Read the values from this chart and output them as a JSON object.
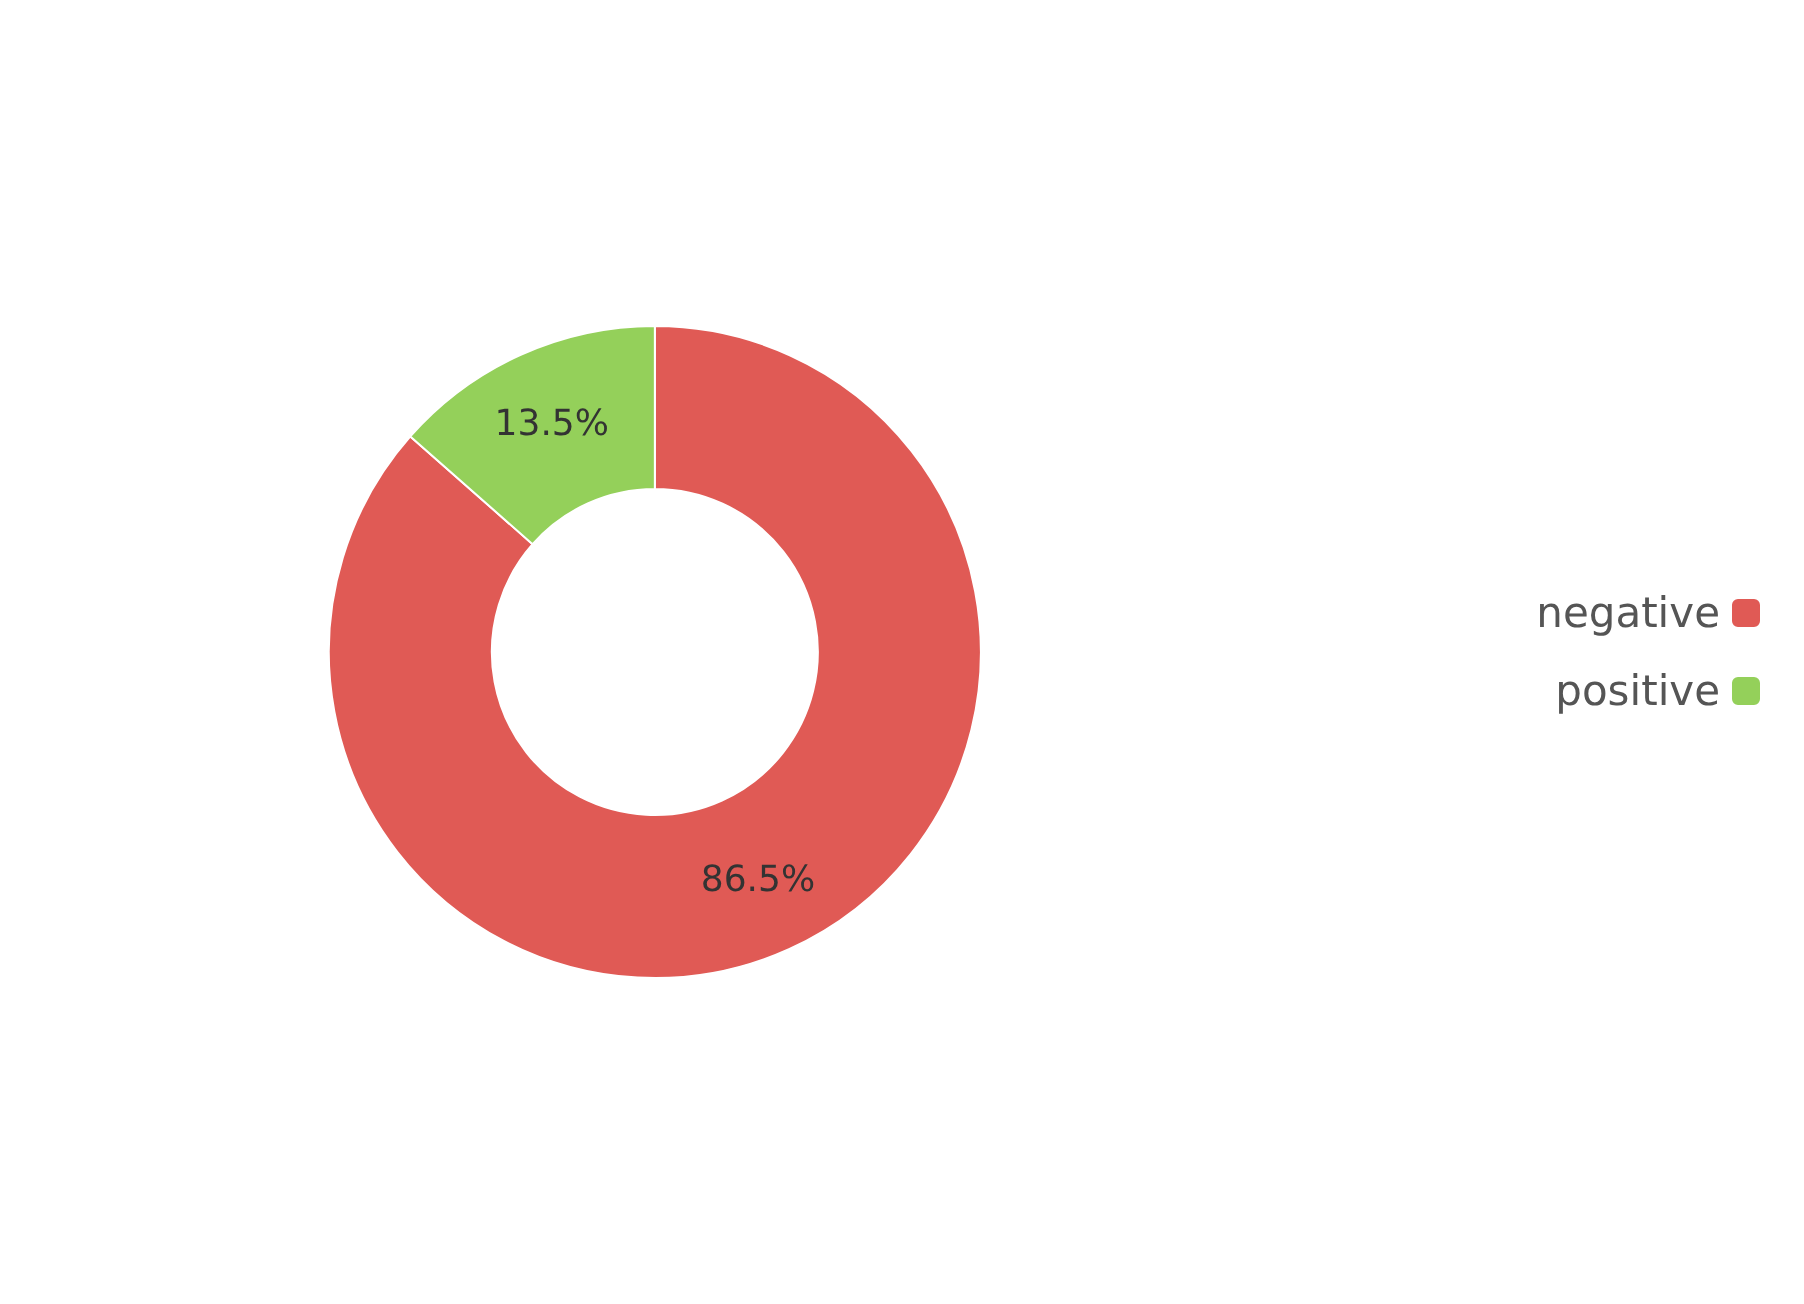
{
  "chart_data": {
    "type": "donut",
    "categories": [
      "negative",
      "positive"
    ],
    "values": [
      86.5,
      13.5
    ],
    "colors": [
      "#e05a55",
      "#94d05a"
    ],
    "value_labels": [
      "86.5%",
      "13.5%"
    ],
    "legend": "right"
  }
}
